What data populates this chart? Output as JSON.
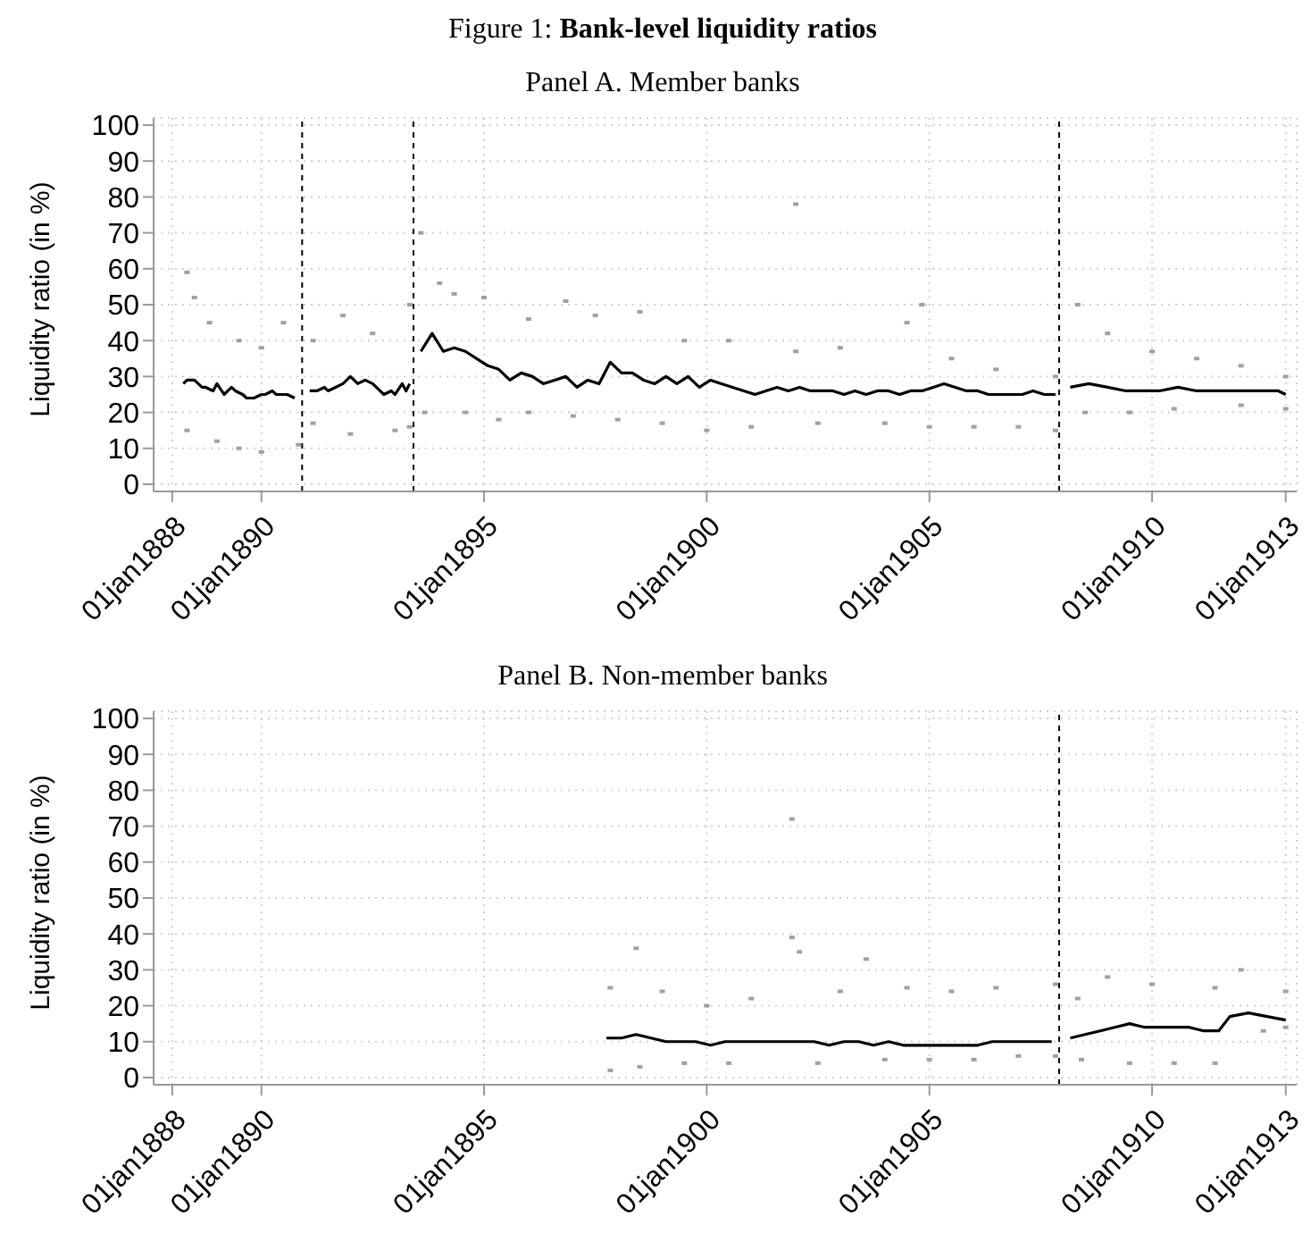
{
  "chart_data": [
    {
      "type": "scatter",
      "title": "Figure 1: Bank-level liquidity ratios",
      "subtitle": "Panel A. Member banks",
      "ylabel": "Liquidity ratio (in %)",
      "xlim": [
        "1887-08",
        "1913-04"
      ],
      "xticks": [
        {
          "value": "1888-01-01",
          "label": "01jan1888"
        },
        {
          "value": "1890-01-01",
          "label": "01jan1890"
        },
        {
          "value": "1895-01-01",
          "label": "01jan1895"
        },
        {
          "value": "1900-01-01",
          "label": "01jan1900"
        },
        {
          "value": "1905-01-01",
          "label": "01jan1905"
        },
        {
          "value": "1910-01-01",
          "label": "01jan1910"
        },
        {
          "value": "1913-01-01",
          "label": "01jan1913"
        }
      ],
      "ylim": [
        -2,
        102
      ],
      "yticks": [
        0,
        10,
        20,
        30,
        40,
        50,
        60,
        70,
        80,
        90,
        100
      ],
      "grid": true,
      "ref_lines": [
        {
          "axis": "x",
          "value": "1890-12",
          "color": "#000000",
          "line_style": "dashed"
        },
        {
          "axis": "x",
          "value": "1893-06",
          "color": "#000000",
          "line_style": "dashed"
        },
        {
          "axis": "x",
          "value": "1907-12",
          "color": "#000000",
          "line_style": "dashed"
        }
      ],
      "series": [
        {
          "color": "#a0a0a0",
          "marker": "square",
          "x": [
            "1888-05",
            "1888-05",
            "1888-07",
            "1888-11",
            "1889-01",
            "1889-07",
            "1889-07",
            "1890-01",
            "1890-01",
            "1890-07",
            "1890-11",
            "1891-03",
            "1891-03",
            "1891-11",
            "1892-01",
            "1892-07",
            "1893-01",
            "1893-05",
            "1893-05",
            "1893-08",
            "1893-09",
            "1894-01",
            "1894-05",
            "1894-08",
            "1895-01",
            "1895-05",
            "1896-01",
            "1896-01",
            "1896-11",
            "1897-01",
            "1897-07",
            "1898-01",
            "1898-07",
            "1899-01",
            "1899-07",
            "1900-01",
            "1900-07",
            "1901-01",
            "1902-01",
            "1902-01",
            "1902-07",
            "1903-01",
            "1904-01",
            "1904-07",
            "1904-11",
            "1905-01",
            "1905-07",
            "1906-01",
            "1906-07",
            "1907-01",
            "1907-11",
            "1907-11",
            "1908-05",
            "1908-07",
            "1909-01",
            "1909-07",
            "1910-01",
            "1910-07",
            "1911-01",
            "1912-01",
            "1912-01",
            "1913-01",
            "1913-01"
          ],
          "values": [
            59,
            15,
            52,
            45,
            12,
            40,
            10,
            38,
            9,
            45,
            11,
            40,
            17,
            47,
            14,
            42,
            15,
            50,
            16,
            70,
            20,
            56,
            53,
            20,
            52,
            18,
            46,
            20,
            51,
            19,
            47,
            18,
            48,
            17,
            40,
            15,
            40,
            16,
            78,
            37,
            17,
            38,
            17,
            45,
            50,
            16,
            35,
            16,
            32,
            16,
            30,
            15,
            50,
            20,
            42,
            20,
            37,
            21,
            35,
            22,
            33,
            30,
            21
          ]
        },
        {
          "type": "line",
          "color": "#000000",
          "marker": "none",
          "line_style": "solid",
          "x": [
            "1888-04",
            "1888-05",
            "1888-07",
            "1888-09",
            "1888-10",
            "1888-12",
            "1889-01",
            "1889-03",
            "1889-05",
            "1889-06",
            "1889-08",
            "1889-09",
            "1889-11",
            "1890-01",
            "1890-02",
            "1890-04",
            "1890-05",
            "1890-07",
            "1890-08",
            "1890-10",
            "1891-01",
            "1891-02",
            "1891-04",
            "1891-06",
            "1891-07",
            "1891-09",
            "1891-11",
            "1892-01",
            "1892-03",
            "1892-05",
            "1892-07",
            "1892-08",
            "1892-10",
            "1892-12",
            "1893-01",
            "1893-03",
            "1893-04",
            "1893-05",
            "1893-07",
            "1893-08",
            "1893-11",
            "1894-02",
            "1894-05",
            "1894-08",
            "1894-11",
            "1895-02",
            "1895-05",
            "1895-08",
            "1895-11",
            "1896-02",
            "1896-05",
            "1896-08",
            "1896-11",
            "1897-02",
            "1897-05",
            "1897-08",
            "1897-11",
            "1898-02",
            "1898-05",
            "1898-08",
            "1898-11",
            "1899-02",
            "1899-05",
            "1899-08",
            "1899-11",
            "1900-02",
            "1900-05",
            "1900-08",
            "1900-11",
            "1901-02",
            "1901-05",
            "1901-08",
            "1901-11",
            "1902-02",
            "1902-05",
            "1902-08",
            "1902-11",
            "1903-02",
            "1903-05",
            "1903-08",
            "1903-11",
            "1904-02",
            "1904-05",
            "1904-08",
            "1904-11",
            "1905-02",
            "1905-05",
            "1905-08",
            "1905-11",
            "1906-02",
            "1906-05",
            "1906-08",
            "1906-11",
            "1907-02",
            "1907-05",
            "1907-08",
            "1907-11",
            "1908-01",
            "1908-03",
            "1908-08",
            "1909-01",
            "1909-06",
            "1909-10",
            "1910-03",
            "1910-08",
            "1911-01",
            "1911-05",
            "1911-10",
            "1912-03",
            "1912-07",
            "1912-11",
            "1913-01"
          ],
          "values": [
            28,
            29,
            29,
            27,
            27,
            26,
            28,
            25,
            27,
            26,
            25,
            24,
            24,
            25,
            25,
            26,
            25,
            25,
            25,
            24,
            null,
            26,
            26,
            27,
            26,
            27,
            28,
            30,
            28,
            29,
            28,
            27,
            25,
            26,
            25,
            28,
            26,
            28,
            null,
            37,
            42,
            37,
            38,
            37,
            35,
            33,
            32,
            29,
            31,
            30,
            28,
            29,
            30,
            27,
            29,
            28,
            34,
            31,
            31,
            29,
            28,
            30,
            28,
            30,
            27,
            29,
            28,
            27,
            26,
            25,
            26,
            27,
            26,
            27,
            26,
            26,
            26,
            25,
            26,
            25,
            26,
            26,
            25,
            26,
            26,
            27,
            28,
            27,
            26,
            26,
            25,
            25,
            25,
            25,
            26,
            25,
            25,
            null,
            27,
            28,
            27,
            26,
            26,
            26,
            27,
            26,
            26,
            26,
            26,
            26,
            26,
            25
          ]
        }
      ]
    },
    {
      "type": "scatter",
      "title": "Panel B. Non-member banks",
      "ylabel": "Liquidity ratio (in %)",
      "xlim": [
        "1887-08",
        "1913-04"
      ],
      "xticks": [
        {
          "value": "1888-01-01",
          "label": "01jan1888"
        },
        {
          "value": "1890-01-01",
          "label": "01jan1890"
        },
        {
          "value": "1895-01-01",
          "label": "01jan1895"
        },
        {
          "value": "1900-01-01",
          "label": "01jan1900"
        },
        {
          "value": "1905-01-01",
          "label": "01jan1905"
        },
        {
          "value": "1910-01-01",
          "label": "01jan1910"
        },
        {
          "value": "1913-01-01",
          "label": "01jan1913"
        }
      ],
      "ylim": [
        -2,
        102
      ],
      "yticks": [
        0,
        10,
        20,
        30,
        40,
        50,
        60,
        70,
        80,
        90,
        100
      ],
      "grid": true,
      "ref_lines": [
        {
          "axis": "x",
          "value": "1907-12",
          "color": "#000000",
          "line_style": "dashed"
        }
      ],
      "series": [
        {
          "color": "#a0a0a0",
          "marker": "square",
          "x": [
            "1897-11",
            "1897-11",
            "1898-06",
            "1898-07",
            "1899-01",
            "1899-07",
            "1900-01",
            "1900-07",
            "1901-01",
            "1901-12",
            "1901-12",
            "1902-02",
            "1902-07",
            "1903-01",
            "1903-08",
            "1904-01",
            "1904-07",
            "1905-01",
            "1905-07",
            "1906-01",
            "1906-07",
            "1907-01",
            "1907-11",
            "1907-11",
            "1908-05",
            "1908-06",
            "1909-01",
            "1909-07",
            "1910-01",
            "1910-07",
            "1911-06",
            "1911-06",
            "1912-01",
            "1912-07",
            "1913-01",
            "1913-01"
          ],
          "values": [
            25,
            2,
            36,
            3,
            24,
            4,
            20,
            4,
            22,
            72,
            39,
            35,
            4,
            24,
            33,
            5,
            25,
            5,
            24,
            5,
            25,
            6,
            26,
            6,
            22,
            5,
            28,
            4,
            26,
            4,
            25,
            4,
            30,
            13,
            24,
            14
          ]
        },
        {
          "type": "line",
          "color": "#000000",
          "marker": "none",
          "line_style": "solid",
          "x": [
            "1897-10",
            "1898-02",
            "1898-06",
            "1898-10",
            "1899-02",
            "1899-06",
            "1899-10",
            "1900-02",
            "1900-06",
            "1900-10",
            "1901-02",
            "1901-06",
            "1901-10",
            "1902-02",
            "1902-06",
            "1902-10",
            "1903-02",
            "1903-06",
            "1903-10",
            "1904-02",
            "1904-06",
            "1904-10",
            "1905-02",
            "1905-06",
            "1905-10",
            "1906-02",
            "1906-06",
            "1906-10",
            "1907-02",
            "1907-06",
            "1907-10",
            "1908-01",
            "1908-03",
            "1908-07",
            "1908-11",
            "1909-03",
            "1909-07",
            "1909-11",
            "1910-03",
            "1910-07",
            "1910-11",
            "1911-03",
            "1911-07",
            "1911-10",
            "1912-03",
            "1912-08",
            "1913-01"
          ],
          "values": [
            11,
            11,
            12,
            11,
            10,
            10,
            10,
            9,
            10,
            10,
            10,
            10,
            10,
            10,
            10,
            9,
            10,
            10,
            9,
            10,
            9,
            9,
            9,
            9,
            9,
            9,
            10,
            10,
            10,
            10,
            10,
            null,
            11,
            12,
            13,
            14,
            15,
            14,
            14,
            14,
            14,
            13,
            13,
            17,
            18,
            17,
            16
          ]
        }
      ]
    }
  ]
}
